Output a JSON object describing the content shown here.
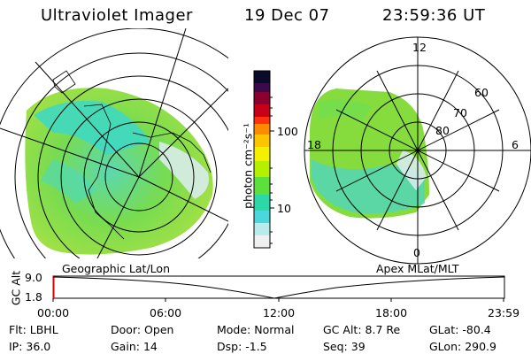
{
  "header": {
    "title": "Ultraviolet Imager",
    "date": "19 Dec 07",
    "time": "23:59:36 UT"
  },
  "left_panel": {
    "label": "Geographic Lat/Lon"
  },
  "right_panel": {
    "label": "Apex MLat/MLT",
    "mlt_labels": [
      "12",
      "18",
      "6",
      "0"
    ],
    "mlat_labels": [
      "60",
      "70",
      "80"
    ]
  },
  "colorbar": {
    "unit_label": "photon cm⁻²s⁻¹",
    "ticks": [
      "100",
      "10"
    ],
    "colors": [
      "#0a0a2a",
      "#3a0a4a",
      "#8a0030",
      "#c80018",
      "#ff3010",
      "#ff8a00",
      "#ffc400",
      "#f4f000",
      "#b4f000",
      "#5ce03c",
      "#2cd8a8",
      "#4ad8dc",
      "#b8ecec",
      "#f0f0f0"
    ]
  },
  "timeline": {
    "axis_label": "GC Alt",
    "y_ticks": [
      "9.0",
      "1.8"
    ],
    "x_ticks": [
      "00:00",
      "06:00",
      "12:00",
      "18:00",
      "23:59"
    ]
  },
  "info": {
    "row1": [
      {
        "key": "Flt:",
        "value": "LBHL"
      },
      {
        "key": "Door:",
        "value": "Open"
      },
      {
        "key": "Mode:",
        "value": "Normal"
      },
      {
        "key": "GC Alt:",
        "value": "8.7 Re"
      },
      {
        "key": "GLat:",
        "value": "-80.4"
      }
    ],
    "row2": [
      {
        "key": "IP:",
        "value": "36.0"
      },
      {
        "key": "Gain:",
        "value": "14"
      },
      {
        "key": "Dsp:",
        "value": "-1.5"
      },
      {
        "key": "Seq:",
        "value": "39"
      },
      {
        "key": "GLon:",
        "value": "290.9"
      }
    ]
  }
}
